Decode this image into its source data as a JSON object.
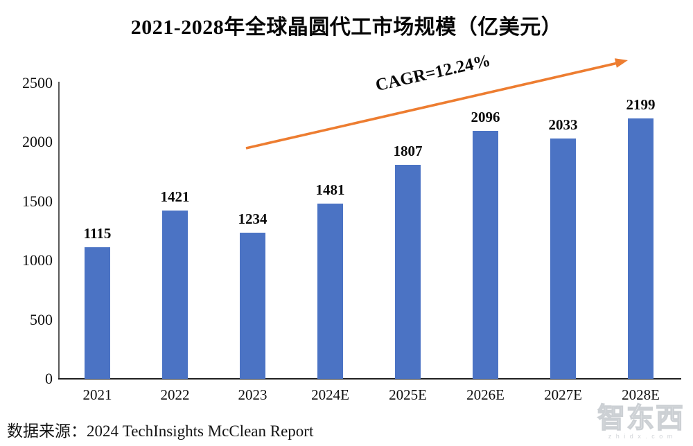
{
  "chart_data": {
    "type": "bar",
    "title": "2021-2028年全球晶圆代工市场规模（亿美元）",
    "categories": [
      "2021",
      "2022",
      "2023",
      "2024E",
      "2025E",
      "2026E",
      "2027E",
      "2028E"
    ],
    "values": [
      1115,
      1421,
      1234,
      1481,
      1807,
      2096,
      2033,
      2199
    ],
    "xlabel": "",
    "ylabel": "",
    "ylim": [
      0,
      2500
    ],
    "yticks": [
      0,
      500,
      1000,
      1500,
      2000,
      2500
    ],
    "grid": false,
    "legend_position": "none",
    "bar_color": "#4B73C4",
    "axis_color": "#595959",
    "annotation": {
      "text": "CAGR=12.24%",
      "arrow_color": "#ED7D31"
    },
    "source": "数据来源：2024 TechInsights McClean Report"
  },
  "watermark": {
    "logo_text": "智东西",
    "site_text": "z h i d x . c o m"
  }
}
